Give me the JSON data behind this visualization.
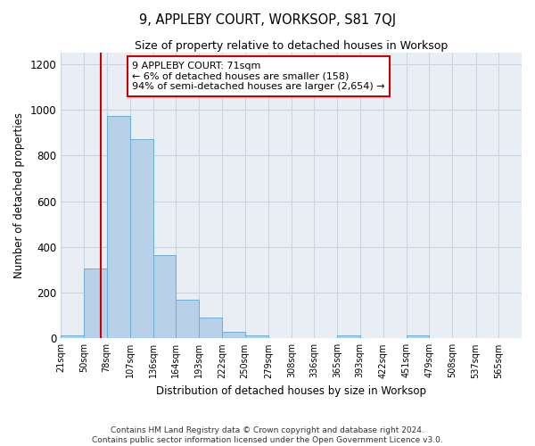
{
  "title": "9, APPLEBY COURT, WORKSOP, S81 7QJ",
  "subtitle": "Size of property relative to detached houses in Worksop",
  "xlabel": "Distribution of detached houses by size in Worksop",
  "ylabel": "Number of detached properties",
  "bar_color": "#b8d0e8",
  "bar_edge_color": "#6aaed6",
  "grid_color": "#c8d4e0",
  "background_color": "#e8eef4",
  "vline_x": 71,
  "vline_color": "#cc0000",
  "annotation_text": "9 APPLEBY COURT: 71sqm\n← 6% of detached houses are smaller (158)\n94% of semi-detached houses are larger (2,654) →",
  "annotation_box_color": "white",
  "annotation_box_edge": "#cc0000",
  "bin_edges": [
    21,
    50,
    78,
    107,
    136,
    164,
    193,
    222,
    250,
    279,
    308,
    336,
    365,
    393,
    422,
    451,
    479,
    508,
    537,
    565,
    594
  ],
  "bar_heights": [
    13,
    305,
    975,
    870,
    365,
    170,
    90,
    27,
    12,
    0,
    0,
    0,
    11,
    0,
    0,
    11,
    0,
    0,
    0,
    0
  ],
  "ylim": [
    0,
    1250
  ],
  "yticks": [
    0,
    200,
    400,
    600,
    800,
    1000,
    1200
  ],
  "footnote": "Contains HM Land Registry data © Crown copyright and database right 2024.\nContains public sector information licensed under the Open Government Licence v3.0.",
  "figsize": [
    6.0,
    5.0
  ],
  "dpi": 100
}
